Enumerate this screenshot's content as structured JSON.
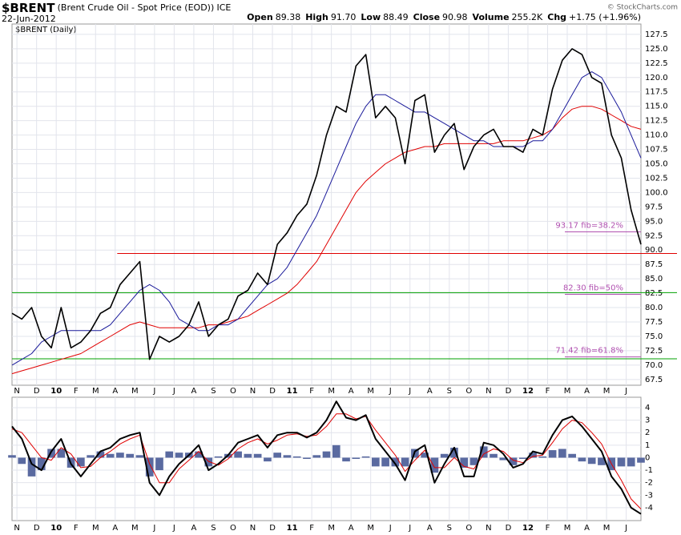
{
  "header": {
    "symbol": "$BRENT",
    "name": "(Brent Crude Oil - Spot Price (EOD))",
    "exchange": "ICE",
    "date": "22-Jun-2012",
    "copyright": "© StockCharts.com",
    "stats": [
      {
        "label": "Open",
        "value": "89.38"
      },
      {
        "label": "High",
        "value": "91.70"
      },
      {
        "label": "Low",
        "value": "88.49"
      },
      {
        "label": "Close",
        "value": "90.98"
      },
      {
        "label": "Volume",
        "value": "255.2K"
      },
      {
        "label": "Chg",
        "value": "+1.75 (+1.96%)"
      }
    ]
  },
  "chart_data": [
    {
      "type": "line",
      "legend": "$BRENT (Daily)",
      "xlim": [
        -0.25,
        31.75
      ],
      "xticks": [
        {
          "value": 0,
          "label": "N"
        },
        {
          "value": 1,
          "label": "D"
        },
        {
          "value": 2,
          "label": "10"
        },
        {
          "value": 3,
          "label": "F"
        },
        {
          "value": 4,
          "label": "M"
        },
        {
          "value": 5,
          "label": "A"
        },
        {
          "value": 6,
          "label": "M"
        },
        {
          "value": 7,
          "label": "J"
        },
        {
          "value": 8,
          "label": "J"
        },
        {
          "value": 9,
          "label": "A"
        },
        {
          "value": 10,
          "label": "S"
        },
        {
          "value": 11,
          "label": "O"
        },
        {
          "value": 12,
          "label": "N"
        },
        {
          "value": 13,
          "label": "D"
        },
        {
          "value": 14,
          "label": "11"
        },
        {
          "value": 15,
          "label": "F"
        },
        {
          "value": 16,
          "label": "M"
        },
        {
          "value": 17,
          "label": "A"
        },
        {
          "value": 18,
          "label": "M"
        },
        {
          "value": 19,
          "label": "J"
        },
        {
          "value": 20,
          "label": "J"
        },
        {
          "value": 21,
          "label": "A"
        },
        {
          "value": 22,
          "label": "S"
        },
        {
          "value": 23,
          "label": "O"
        },
        {
          "value": 24,
          "label": "N"
        },
        {
          "value": 25,
          "label": "D"
        },
        {
          "value": 26,
          "label": "12"
        },
        {
          "value": 27,
          "label": "F"
        },
        {
          "value": 28,
          "label": "M"
        },
        {
          "value": 29,
          "label": "A"
        },
        {
          "value": 30,
          "label": "M"
        },
        {
          "value": 31,
          "label": "J"
        }
      ],
      "ylim": [
        66.5,
        129.3
      ],
      "yticks": [
        67.5,
        {
          "value": 70,
          "label": "70.0"
        },
        72.5,
        {
          "value": 75,
          "label": "75.0"
        },
        77.5,
        {
          "value": 80,
          "label": "80.0"
        },
        82.5,
        {
          "value": 85,
          "label": "85.0"
        },
        87.5,
        {
          "value": 90,
          "label": "90.0"
        },
        92.5,
        {
          "value": 95,
          "label": "95.0"
        },
        97.5,
        {
          "value": 100,
          "label": "100.0"
        },
        102.5,
        {
          "value": 105,
          "label": "105.0"
        },
        107.5,
        {
          "value": 110,
          "label": "110.0"
        },
        112.5,
        {
          "value": 115,
          "label": "115.0"
        },
        117.5,
        {
          "value": 120,
          "label": "120.0"
        },
        122.5,
        {
          "value": 125,
          "label": "125.0"
        },
        127.5
      ],
      "grid": true,
      "series": [
        {
          "color": "#000000",
          "width": 1.6,
          "values": [
            79,
            78,
            80,
            75,
            73,
            80,
            73,
            74,
            76,
            79,
            80,
            84,
            86,
            88,
            71,
            75,
            74,
            75,
            77,
            81,
            75,
            77,
            78,
            82,
            83,
            86,
            84,
            91,
            93,
            96,
            98,
            103,
            110,
            115,
            114,
            122,
            124,
            113,
            115,
            113,
            105,
            116,
            117,
            107,
            110,
            112,
            104,
            108,
            110,
            111,
            108,
            108,
            107,
            111,
            110,
            118,
            123,
            125,
            124,
            120,
            119,
            110,
            106,
            97,
            91
          ]
        },
        {
          "color": "#1a1a9a",
          "width": 1,
          "values": [
            70,
            71,
            72,
            74,
            75,
            76,
            76,
            76,
            76,
            76,
            77,
            79,
            81,
            83,
            84,
            83,
            81,
            78,
            77,
            76,
            76,
            77,
            77,
            78,
            80,
            82,
            84,
            85,
            87,
            90,
            93,
            96,
            100,
            104,
            108,
            112,
            115,
            117,
            117,
            116,
            115,
            114,
            114,
            113,
            112,
            111,
            110,
            109,
            109,
            108,
            108,
            108,
            108,
            109,
            109,
            111,
            114,
            117,
            120,
            121,
            120,
            117,
            114,
            110,
            106
          ]
        },
        {
          "color": "#e00000",
          "width": 1,
          "values": [
            68.5,
            69,
            69.5,
            70,
            70.5,
            71,
            71.5,
            72,
            73,
            74,
            75,
            76,
            77,
            77.5,
            77,
            76.5,
            76.5,
            76.5,
            76.5,
            76.5,
            77,
            77,
            77.5,
            78,
            78.5,
            79.5,
            80.5,
            81.5,
            82.5,
            84,
            86,
            88,
            91,
            94,
            97,
            100,
            102,
            103.5,
            105,
            106,
            107,
            107.5,
            108,
            108,
            108.5,
            108.5,
            108.5,
            108.5,
            108.5,
            108.5,
            109,
            109,
            109,
            109.5,
            110,
            111,
            113,
            114.5,
            115,
            115,
            114.5,
            113.5,
            112.5,
            111.5,
            111
          ]
        }
      ],
      "hlines": [
        {
          "value": 89.4,
          "color": "#e00000"
        },
        {
          "value": 82.6,
          "color": "#00a000"
        },
        {
          "value": 71.1,
          "color": "#00a000"
        }
      ],
      "fib_levels": [
        {
          "value": 93.17,
          "label": "93.17 fib=38.2%"
        },
        {
          "value": 82.3,
          "label": "82.30 fib=50%"
        },
        {
          "value": 71.42,
          "label": "71.42 fib=61.8%"
        }
      ],
      "fib_color": "#b050b0"
    },
    {
      "type": "macd",
      "xlim": [
        -0.25,
        31.75
      ],
      "xticks": [
        {
          "value": 0,
          "label": "N"
        },
        {
          "value": 1,
          "label": "D"
        },
        {
          "value": 2,
          "label": "10"
        },
        {
          "value": 3,
          "label": "F"
        },
        {
          "value": 4,
          "label": "M"
        },
        {
          "value": 5,
          "label": "A"
        },
        {
          "value": 6,
          "label": "M"
        },
        {
          "value": 7,
          "label": "J"
        },
        {
          "value": 8,
          "label": "J"
        },
        {
          "value": 9,
          "label": "A"
        },
        {
          "value": 10,
          "label": "S"
        },
        {
          "value": 11,
          "label": "O"
        },
        {
          "value": 12,
          "label": "N"
        },
        {
          "value": 13,
          "label": "D"
        },
        {
          "value": 14,
          "label": "11"
        },
        {
          "value": 15,
          "label": "F"
        },
        {
          "value": 16,
          "label": "M"
        },
        {
          "value": 17,
          "label": "A"
        },
        {
          "value": 18,
          "label": "M"
        },
        {
          "value": 19,
          "label": "J"
        },
        {
          "value": 20,
          "label": "J"
        },
        {
          "value": 21,
          "label": "A"
        },
        {
          "value": 22,
          "label": "S"
        },
        {
          "value": 23,
          "label": "O"
        },
        {
          "value": 24,
          "label": "N"
        },
        {
          "value": 25,
          "label": "D"
        },
        {
          "value": 26,
          "label": "12"
        },
        {
          "value": 27,
          "label": "F"
        },
        {
          "value": 28,
          "label": "M"
        },
        {
          "value": 29,
          "label": "A"
        },
        {
          "value": 30,
          "label": "M"
        },
        {
          "value": 31,
          "label": "J"
        }
      ],
      "ylim": [
        -5.03,
        4.83
      ],
      "yticks": [
        4,
        3,
        2,
        1,
        0,
        -1,
        -2,
        -3,
        -4
      ],
      "grid": true,
      "histogram": {
        "color": "#5a6aa0",
        "values": [
          0.2,
          -0.5,
          -1.5,
          -1,
          0.7,
          0.7,
          -0.8,
          -0.7,
          0.2,
          0.5,
          0.3,
          0.4,
          0.3,
          0.2,
          -1.5,
          -1,
          0.5,
          0.4,
          0.4,
          0.5,
          -0.7,
          0.1,
          0.3,
          0.5,
          0.3,
          0.3,
          -0.3,
          0.4,
          0.2,
          0.1,
          -0.1,
          0.2,
          0.5,
          1,
          -0.3,
          -0.1,
          0.1,
          -0.7,
          -0.7,
          -0.7,
          -0.7,
          0.7,
          0.4,
          -1.2,
          0.3,
          0.8,
          -0.8,
          -0.6,
          0.9,
          0.3,
          -0.2,
          -0.6,
          -0.1,
          0.4,
          0.1,
          0.6,
          0.7,
          0.3,
          -0.3,
          -0.5,
          -0.6,
          -1,
          -0.7,
          -0.7,
          -0.4
        ]
      },
      "series": [
        {
          "color": "#000000",
          "width": 2,
          "values": [
            2.5,
            1.5,
            -0.5,
            -1,
            0.5,
            1.5,
            -0.5,
            -1.5,
            -0.5,
            0.5,
            0.8,
            1.5,
            1.8,
            2,
            -2,
            -3,
            -1.5,
            -0.5,
            0.2,
            1,
            -1,
            -0.5,
            0.2,
            1.2,
            1.5,
            1.8,
            0.8,
            1.8,
            2,
            2,
            1.6,
            2,
            3,
            4.5,
            3.2,
            3,
            3.4,
            1.5,
            0.5,
            -0.5,
            -1.8,
            0.5,
            1,
            -2,
            -0.5,
            0.8,
            -1.5,
            -1.5,
            1.2,
            1,
            0.3,
            -0.8,
            -0.5,
            0.5,
            0.3,
            1.8,
            3,
            3.3,
            2.5,
            1.5,
            0.5,
            -1.5,
            -2.5,
            -4,
            -4.5
          ]
        },
        {
          "color": "#e00000",
          "width": 1,
          "values": [
            2.3,
            2,
            1,
            0,
            -0.2,
            0.8,
            0.3,
            -0.8,
            -0.7,
            0,
            0.5,
            1.1,
            1.5,
            1.8,
            -0.5,
            -2,
            -2,
            -0.9,
            -0.2,
            0.5,
            -0.3,
            -0.6,
            -0.1,
            0.7,
            1.2,
            1.5,
            1.1,
            1.4,
            1.8,
            1.9,
            1.7,
            1.8,
            2.5,
            3.5,
            3.5,
            3.1,
            3.3,
            2.2,
            1.2,
            0.2,
            -1.1,
            -0.2,
            0.6,
            -0.8,
            -0.8,
            0,
            -0.7,
            -0.9,
            0.3,
            0.7,
            0.5,
            -0.2,
            -0.4,
            0.1,
            0.2,
            1.2,
            2.3,
            3,
            2.8,
            2,
            1.1,
            -0.5,
            -1.8,
            -3.3,
            -4.1
          ]
        }
      ]
    }
  ]
}
